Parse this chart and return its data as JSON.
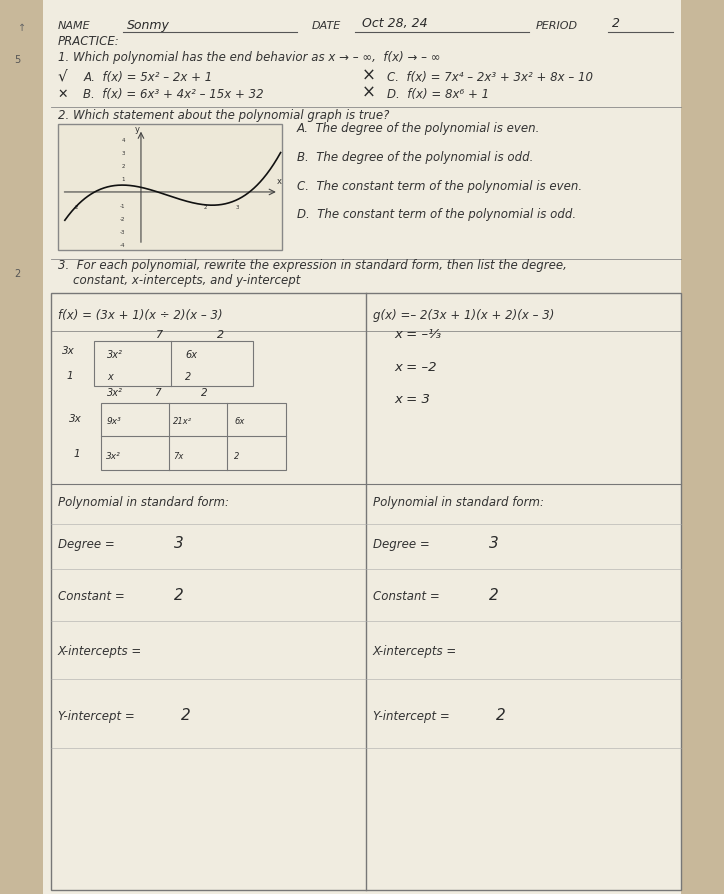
{
  "bg_color": "#c8b89a",
  "paper_color": "#f0ece0",
  "handwriting_color": "#2a2a2a",
  "line_color": "#555555",
  "q2_A": "A.  The degree of the polynomial is even.",
  "q2_B": "B.  The degree of the polynomial is odd.",
  "q2_C": "C.  The constant term of the polynomial is even.",
  "q2_D": "D.  The constant term of the polynomial is odd.",
  "poly_std_form": "Polynomial in standard form:",
  "degree_label": "Degree = ",
  "constant_label": "Constant = ",
  "xint_label": "X-intercepts =",
  "yint_label": "Y-intercept = "
}
